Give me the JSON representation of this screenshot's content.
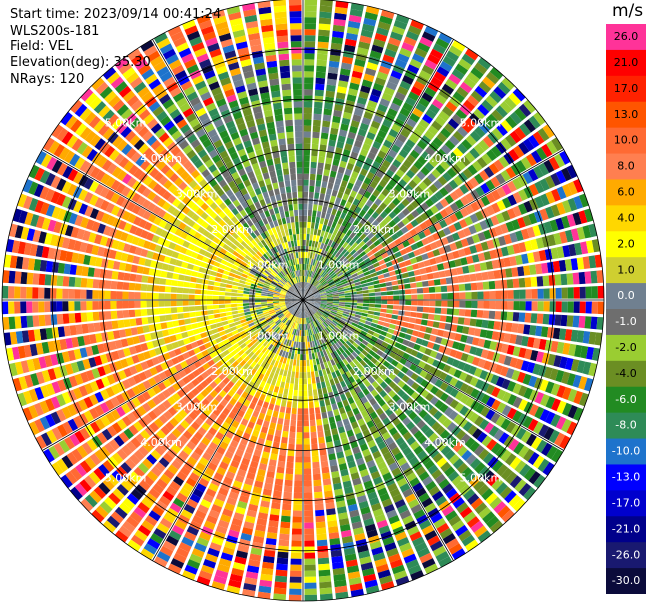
{
  "header": {
    "start_time": "Start time: 2023/09/14 00:41:24",
    "instrument": "WLS200s-181",
    "field": "Field: VEL",
    "elevation": "Elevation(deg): 35.30",
    "nrays": "NRays: 120"
  },
  "chart_data": {
    "type": "heatmap",
    "projection": "polar-ppi",
    "title": "",
    "n_rays": 120,
    "max_range_km": 6.0,
    "range_rings_km": [
      1,
      2,
      3,
      4,
      5,
      6
    ],
    "range_ring_labels": [
      "1.00km",
      "2.00km",
      "3.00km",
      "4.00km",
      "5.00km"
    ],
    "spoke_angles_deg": [
      0,
      30,
      60,
      90,
      120,
      150,
      180,
      210,
      240,
      270,
      300,
      330
    ],
    "colorbar": {
      "unit": "m/s",
      "tick_labels": [
        "26.0",
        "21.0",
        "17.0",
        "13.0",
        "10.0",
        "8.0",
        "6.0",
        "4.0",
        "2.0",
        "1.0",
        "0.0",
        "-1.0",
        "-2.0",
        "-4.0",
        "-6.0",
        "-8.0",
        "-10.0",
        "-13.0",
        "-17.0",
        "-21.0",
        "-26.0",
        "-30.0"
      ],
      "tick_values": [
        26,
        21,
        17,
        13,
        10,
        8,
        6,
        4,
        2,
        1,
        0,
        -1,
        -2,
        -4,
        -6,
        -8,
        -10,
        -13,
        -17,
        -21,
        -26,
        -30
      ],
      "colors": [
        "#ff3399",
        "#ff0000",
        "#ff2200",
        "#ff5500",
        "#ff6a33",
        "#ff7f50",
        "#ffaa00",
        "#ffd700",
        "#ffff00",
        "#cfcf30",
        "#708090",
        "#6e6e6e",
        "#9acd32",
        "#6b8e23",
        "#228b22",
        "#2e8b57",
        "#1e73cc",
        "#0000ff",
        "#0000cd",
        "#00008b",
        "#191970",
        "#0b0b3b"
      ]
    }
  }
}
